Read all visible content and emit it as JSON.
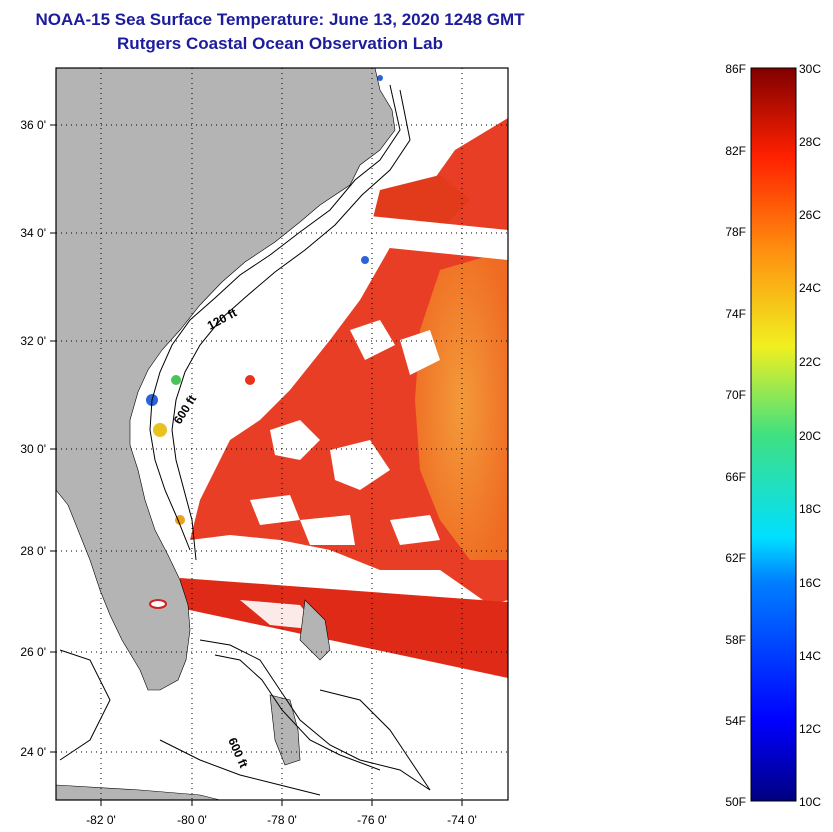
{
  "title": "NOAA-15 Sea Surface Temperature:  June 13, 2020 1248 GMT",
  "subtitle": "Rutgers Coastal Ocean Observation Lab",
  "lat_labels": [
    "36 0'",
    "34 0'",
    "32 0'",
    "30 0'",
    "28 0'",
    "26 0'",
    "24 0'"
  ],
  "lon_labels": [
    "-82 0'",
    "-80 0'",
    "-78 0'",
    "-76 0'",
    "-74 0'"
  ],
  "contour_labels": [
    "120 ft",
    "600 ft",
    "600 ft"
  ],
  "colorbar": {
    "fahrenheit_labels": [
      "86F",
      "82F",
      "78F",
      "74F",
      "70F",
      "66F",
      "62F",
      "58F",
      "54F",
      "50F"
    ],
    "celsius_labels": [
      "30C",
      "28C",
      "26C",
      "24C",
      "22C",
      "20C",
      "18C",
      "16C",
      "14C",
      "12C",
      "10C"
    ]
  },
  "colors": {
    "title": "#1c1c9c",
    "land": "#b4b4b4",
    "warm": "#e8341a",
    "offshore": "#f07a22"
  }
}
